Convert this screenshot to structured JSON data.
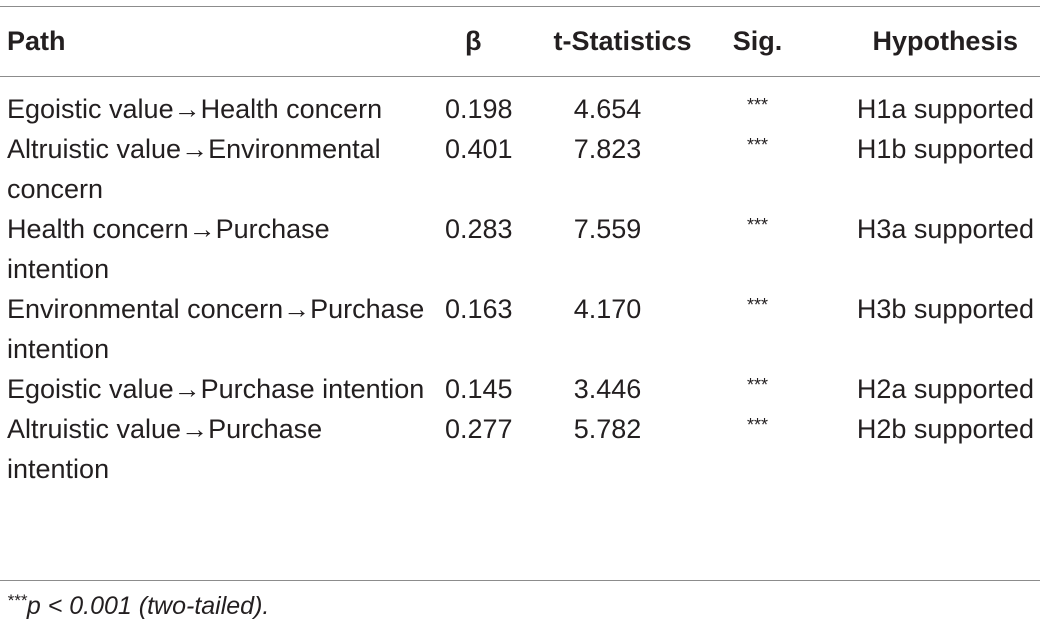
{
  "table": {
    "headers": {
      "path": "Path",
      "beta": "β",
      "t": "t-Statistics",
      "sig": "Sig.",
      "hypothesis": "Hypothesis"
    },
    "rows": [
      {
        "path": "Egoistic value→Health concern",
        "beta": "0.198",
        "t": "4.654",
        "sig": "***",
        "hypothesis": "H1a supported"
      },
      {
        "path": "Altruistic value→Environmental concern",
        "beta": "0.401",
        "t": "7.823",
        "sig": "***",
        "hypothesis": "H1b supported"
      },
      {
        "path": "Health concern→Purchase intention",
        "beta": "0.283",
        "t": "7.559",
        "sig": "***",
        "hypothesis": "H3a supported"
      },
      {
        "path": "Environmental concern→Purchase intention",
        "beta": "0.163",
        "t": "4.170",
        "sig": "***",
        "hypothesis": "H3b supported"
      },
      {
        "path": "Egoistic value→Purchase intention",
        "beta": "0.145",
        "t": "3.446",
        "sig": "***",
        "hypothesis": "H2a supported"
      },
      {
        "path": "Altruistic value→Purchase intention",
        "beta": "0.277",
        "t": "5.782",
        "sig": "***",
        "hypothesis": "H2b supported"
      }
    ]
  },
  "footnote": {
    "stars": "***",
    "text": "p < 0.001 (two-tailed)."
  }
}
